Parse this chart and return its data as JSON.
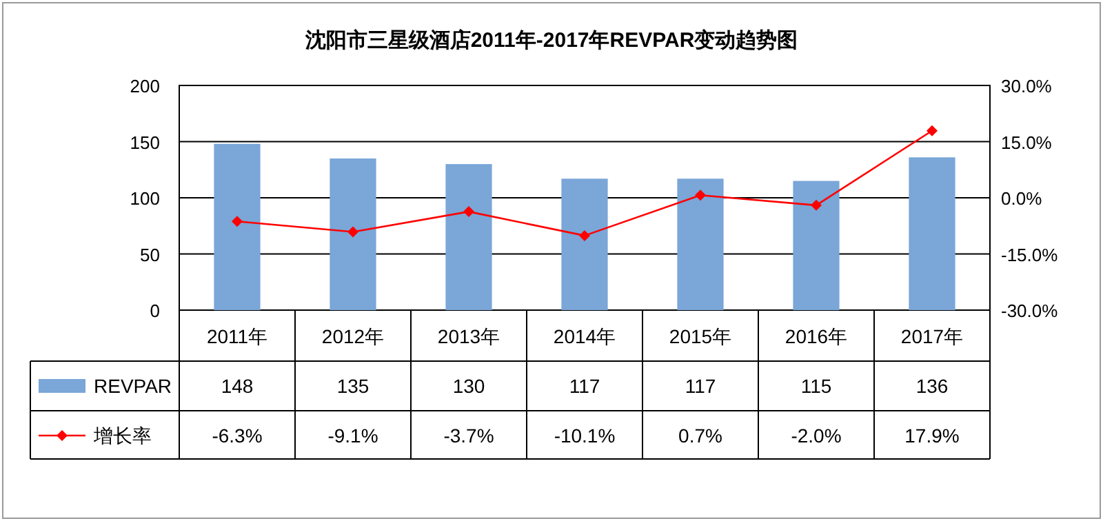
{
  "chart_data": {
    "type": "bar",
    "title": "沈阳市三星级酒店2011年-2017年REVPAR变动趋势图",
    "categories": [
      "2011年",
      "2012年",
      "2013年",
      "2014年",
      "2015年",
      "2016年",
      "2017年"
    ],
    "series": [
      {
        "name": "REVPAR",
        "color": "#7aa6d8",
        "values": [
          148,
          135,
          130,
          117,
          117,
          115,
          136
        ],
        "value_labels": [
          "148",
          "135",
          "130",
          "117",
          "117",
          "115",
          "136"
        ]
      },
      {
        "name": "增长率",
        "type": "line",
        "axis": "y2",
        "color": "#ff0000",
        "marker": "diamond",
        "values": [
          -6.3,
          -9.1,
          -3.7,
          -10.1,
          0.7,
          -2.0,
          17.9
        ],
        "value_labels": [
          "-6.3%",
          "-9.1%",
          "-3.7%",
          "-10.1%",
          "0.7%",
          "-2.0%",
          "17.9%"
        ]
      }
    ],
    "ylim": [
      0,
      200
    ],
    "yticks": [
      0,
      50,
      100,
      150,
      200
    ],
    "y2lim": [
      -30,
      30
    ],
    "y2ticks": [
      {
        "value": -30,
        "label": "-30.0%"
      },
      {
        "value": -15,
        "label": "-15.0%"
      },
      {
        "value": 0,
        "label": "0.0%"
      },
      {
        "value": 15,
        "label": "15.0%"
      },
      {
        "value": 30,
        "label": "30.0%"
      }
    ],
    "grid": "y",
    "legend": "bottom"
  }
}
